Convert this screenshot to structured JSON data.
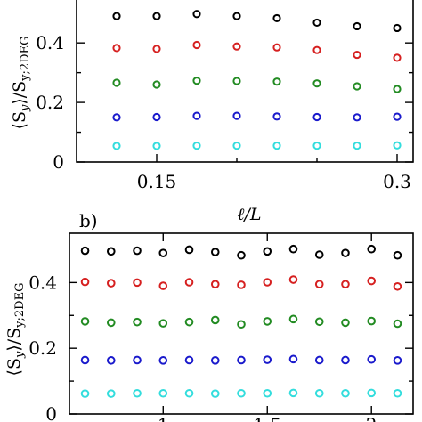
{
  "chart_data": [
    {
      "type": "scatter",
      "panel_label": "",
      "xlabel": "ℓ/L",
      "ylabel": "⟨S_y⟩/S_y;2DEG",
      "ylabel_main": "⟨S",
      "ylabel_sub1": "y",
      "ylabel_mid": "⟩/S",
      "ylabel_sub2": "y;2DEG",
      "xlim": [
        0.1,
        0.31
      ],
      "ylim": [
        0,
        0.55
      ],
      "x_ticks": [
        0.15,
        0.3
      ],
      "x_tick_labels": [
        "0.15",
        "0.3"
      ],
      "x_minor_ticks": [
        0.2,
        0.25
      ],
      "y_ticks": [
        0,
        0.2,
        0.4
      ],
      "y_tick_labels": [
        "0",
        "0.2",
        "0.4"
      ],
      "y_minor_ticks": [
        0.1,
        0.3
      ],
      "x": [
        0.125,
        0.15,
        0.175,
        0.2,
        0.225,
        0.25,
        0.275,
        0.3
      ],
      "series": [
        {
          "color": "#000000",
          "values": [
            0.49,
            0.49,
            0.497,
            0.49,
            0.483,
            0.468,
            0.456,
            0.45
          ]
        },
        {
          "color": "#d62020",
          "values": [
            0.383,
            0.38,
            0.393,
            0.388,
            0.385,
            0.376,
            0.36,
            0.35
          ]
        },
        {
          "color": "#228b22",
          "values": [
            0.266,
            0.26,
            0.273,
            0.272,
            0.27,
            0.264,
            0.254,
            0.245
          ]
        },
        {
          "color": "#1a1acc",
          "values": [
            0.15,
            0.151,
            0.155,
            0.155,
            0.153,
            0.151,
            0.15,
            0.152
          ]
        },
        {
          "color": "#33dddd",
          "values": [
            0.054,
            0.054,
            0.055,
            0.055,
            0.055,
            0.055,
            0.055,
            0.056
          ]
        }
      ]
    },
    {
      "type": "scatter",
      "panel_label": "b)",
      "xlabel": "",
      "ylabel": "⟨S_y⟩/S_y;2DEG",
      "ylabel_main": "⟨S",
      "ylabel_sub1": "y",
      "ylabel_mid": "⟩/S",
      "ylabel_sub2": "y;2DEG",
      "xlim": [
        0.55,
        2.2
      ],
      "ylim": [
        0,
        0.55
      ],
      "x_ticks": [
        1,
        1.5,
        2
      ],
      "x_tick_labels": [
        "1",
        "1.5",
        "2"
      ],
      "y_ticks": [
        0,
        0.2,
        0.4
      ],
      "y_tick_labels": [
        "0",
        "0.2",
        "0.4"
      ],
      "y_minor_ticks": [
        0.1,
        0.3
      ],
      "x": [
        0.625,
        0.75,
        0.875,
        1.0,
        1.125,
        1.25,
        1.375,
        1.5,
        1.625,
        1.75,
        1.875,
        2.0,
        2.125
      ],
      "series": [
        {
          "color": "#000000",
          "values": [
            0.497,
            0.495,
            0.497,
            0.49,
            0.5,
            0.493,
            0.483,
            0.495,
            0.502,
            0.485,
            0.49,
            0.502,
            0.483
          ]
        },
        {
          "color": "#d62020",
          "values": [
            0.402,
            0.398,
            0.4,
            0.39,
            0.401,
            0.395,
            0.393,
            0.401,
            0.409,
            0.395,
            0.395,
            0.405,
            0.388
          ]
        },
        {
          "color": "#228b22",
          "values": [
            0.282,
            0.278,
            0.28,
            0.276,
            0.28,
            0.286,
            0.273,
            0.282,
            0.289,
            0.281,
            0.278,
            0.283,
            0.275
          ]
        },
        {
          "color": "#1a1acc",
          "values": [
            0.164,
            0.163,
            0.164,
            0.163,
            0.164,
            0.163,
            0.164,
            0.165,
            0.167,
            0.164,
            0.164,
            0.166,
            0.163
          ]
        },
        {
          "color": "#33dddd",
          "values": [
            0.062,
            0.062,
            0.063,
            0.063,
            0.063,
            0.062,
            0.063,
            0.063,
            0.064,
            0.063,
            0.063,
            0.064,
            0.063
          ]
        }
      ]
    }
  ]
}
